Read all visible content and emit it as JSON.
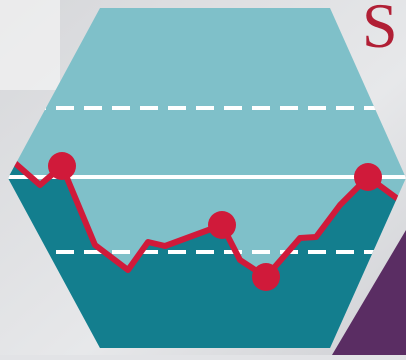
{
  "brand": {
    "letter": "S"
  },
  "colors": {
    "background": "#e2e3e6",
    "hex_light": "#7fc0c9",
    "hex_dark": "#137e8e",
    "line_red": "#d01a3a",
    "dashes": "#ffffff",
    "corner_purple": "#5a2d63",
    "brand": "#b11f35"
  },
  "icon": {
    "name": "hexagon-line-chart-icon"
  }
}
